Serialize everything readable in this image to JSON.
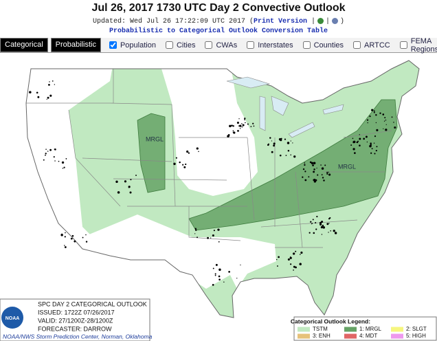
{
  "header": {
    "title": "Jul 26, 2017 1730 UTC Day 2 Convective Outlook",
    "updated": "Updated: Wed Jul 26 17:22:09 UTC 2017 (",
    "print_link": "Print Version",
    "separator": "|",
    "close": ")",
    "conversion_link": "Probabilistic to Categorical Outlook Conversion Table"
  },
  "tabs": [
    "Categorical",
    "Probabilistic"
  ],
  "layers": [
    {
      "label": "Population",
      "checked": true
    },
    {
      "label": "Cities",
      "checked": false
    },
    {
      "label": "CWAs",
      "checked": false
    },
    {
      "label": "Interstates",
      "checked": false
    },
    {
      "label": "Counties",
      "checked": false
    },
    {
      "label": "ARTCC",
      "checked": false
    },
    {
      "label": "FEMA Regions",
      "checked": false
    }
  ],
  "map": {
    "labels": [
      "MRGL",
      "MRGL"
    ]
  },
  "info_box": {
    "logo": "NOAA",
    "lines": [
      "SPC DAY 2 CATEGORICAL OUTLOOK",
      "ISSUED: 1722Z 07/26/2017",
      "VALID: 27/1200Z-28/1200Z",
      "FORECASTER: DARROW"
    ],
    "credit": "NOAA/NWS Storm Prediction Center, Norman, Oklahoma"
  },
  "legend": {
    "title": "Categorical Outlook Legend:",
    "items": [
      {
        "label": "TSTM",
        "color": "#c1e9c1"
      },
      {
        "label": "1: MRGL",
        "color": "#66a366"
      },
      {
        "label": "2: SLGT",
        "color": "#f6f67f"
      },
      {
        "label": "3: ENH",
        "color": "#e6c27a"
      },
      {
        "label": "4: MDT",
        "color": "#e06666"
      },
      {
        "label": "5: HIGH",
        "color": "#ee99ee"
      }
    ]
  }
}
